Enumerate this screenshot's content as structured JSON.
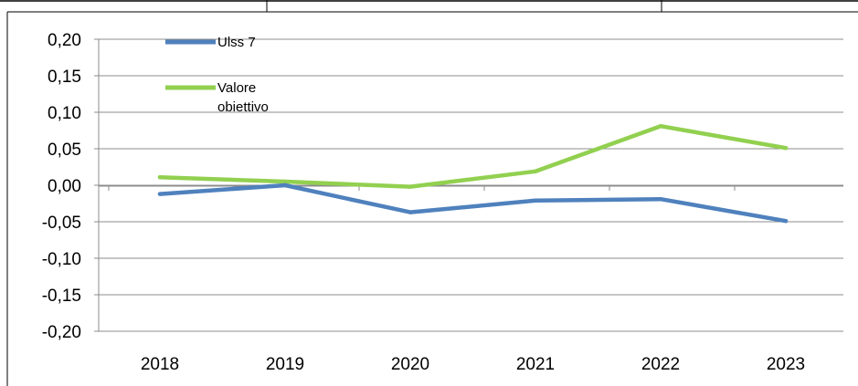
{
  "chart_data": {
    "type": "line",
    "categories": [
      "2018",
      "2019",
      "2020",
      "2021",
      "2022",
      "2023"
    ],
    "series": [
      {
        "name": "Ulss 7",
        "color": "#4F81BD",
        "values": [
          -0.012,
          0.0,
          -0.037,
          -0.021,
          -0.019,
          -0.049
        ]
      },
      {
        "name": "Valore obiettivo",
        "name_lines": [
          "Valore",
          "obiettivo"
        ],
        "color": "#92D050",
        "values": [
          0.011,
          0.005,
          -0.002,
          0.019,
          0.081,
          0.051
        ]
      }
    ],
    "y_ticks": [
      0.2,
      0.15,
      0.1,
      0.05,
      0.0,
      -0.05,
      -0.1,
      -0.15,
      -0.2
    ],
    "y_tick_labels": [
      "0,20",
      "0,15",
      "0,10",
      "0,05",
      "0,00",
      "-0,05",
      "-0,10",
      "-0,15",
      "-0,20"
    ],
    "ylim": [
      -0.2,
      0.2
    ],
    "grid": true,
    "legend_position": "top-left inside plot"
  }
}
